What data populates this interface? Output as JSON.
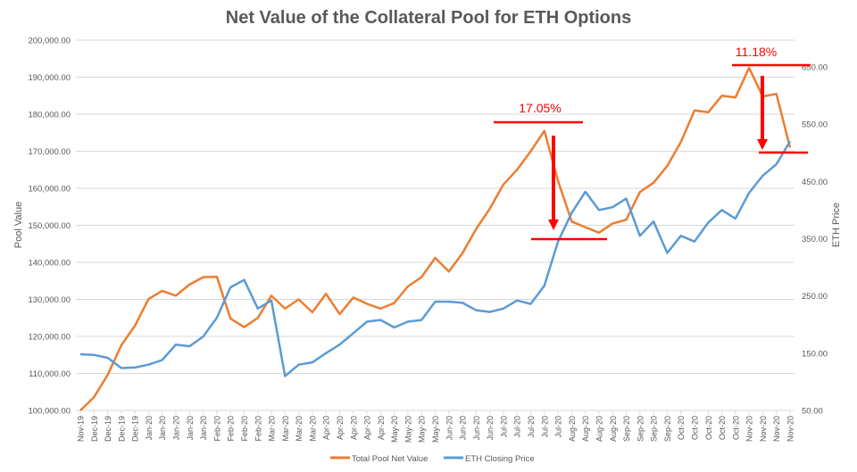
{
  "chart_data": {
    "type": "line",
    "title": "Net Value of the Collateral Pool for ETH Options",
    "ylabel": "Pool Value",
    "y2label": "ETH Price",
    "ylim": [
      100000,
      200000
    ],
    "y2lim": [
      50,
      650
    ],
    "yticks": [
      "100,000.00",
      "110,000.00",
      "120,000.00",
      "130,000.00",
      "140,000.00",
      "150,000.00",
      "160,000.00",
      "170,000.00",
      "180,000.00",
      "190,000.00",
      "200,000.00"
    ],
    "y2ticks": [
      "50.00",
      "150.00",
      "250.00",
      "350.00",
      "450.00",
      "550.00",
      "650.00"
    ],
    "grid": true,
    "legend_position": "bottom",
    "categories": [
      "Nov-19",
      "Dec-19",
      "Dec-19",
      "Dec-19",
      "Dec-19",
      "Jan-20",
      "Jan-20",
      "Jan-20",
      "Jan-20",
      "Jan-20",
      "Feb-20",
      "Feb-20",
      "Feb-20",
      "Feb-20",
      "Mar-20",
      "Mar-20",
      "Mar-20",
      "Mar-20",
      "Apr-20",
      "Apr-20",
      "Apr-20",
      "Apr-20",
      "Apr-20",
      "May-20",
      "May-20",
      "May-20",
      "May-20",
      "Jun-20",
      "Jun-20",
      "Jun-20",
      "Jun-20",
      "Jul-20",
      "Jul-20",
      "Jul-20",
      "Jul-20",
      "Jul-20",
      "Aug-20",
      "Aug-20",
      "Aug-20",
      "Aug-20",
      "Sep-20",
      "Sep-20",
      "Sep-20",
      "Sep-20",
      "Oct-20",
      "Oct-20",
      "Oct-20",
      "Oct-20",
      "Oct-20",
      "Nov-20",
      "Nov-20",
      "Nov-20",
      "Nov-20"
    ],
    "series": [
      {
        "name": "Total Pool Net Value",
        "axis": "left",
        "color": "#ED7D31",
        "values": [
          100000,
          103600,
          109600,
          117600,
          122900,
          130100,
          132300,
          131000,
          134000,
          136000,
          136100,
          124800,
          122500,
          125000,
          131000,
          127500,
          130000,
          126500,
          131500,
          126000,
          130500,
          128800,
          127500,
          129000,
          133500,
          136000,
          141200,
          137500,
          142500,
          149000,
          154500,
          161000,
          165000,
          170000,
          175500,
          162000,
          151000,
          149500,
          148000,
          150500,
          151500,
          159000,
          161500,
          166000,
          172500,
          181000,
          180500,
          185000,
          184500,
          192500,
          184800,
          185500,
          171000
        ]
      },
      {
        "name": "ETH Closing Price",
        "axis": "right",
        "color": "#5B9BD5",
        "values": [
          148,
          147,
          142,
          124,
          125,
          130,
          138,
          165,
          162,
          179,
          212,
          265,
          278,
          228,
          242,
          110,
          130,
          134,
          150,
          165,
          185,
          205,
          208,
          195,
          205,
          208,
          240,
          240,
          238,
          225,
          222,
          228,
          242,
          236,
          268,
          345,
          395,
          432,
          400,
          405,
          420,
          355,
          380,
          325,
          355,
          345,
          378,
          400,
          385,
          430,
          460,
          480,
          520
        ]
      }
    ],
    "annotations": [
      {
        "text": "17.05%",
        "from_category_index": 34,
        "peak_value": 176600,
        "trough_value": 146500,
        "color": "#FF0000"
      },
      {
        "text": "11.18%",
        "from_category_index": 49,
        "peak_value": 192800,
        "trough_value": 170600,
        "color": "#FF0000"
      }
    ]
  }
}
